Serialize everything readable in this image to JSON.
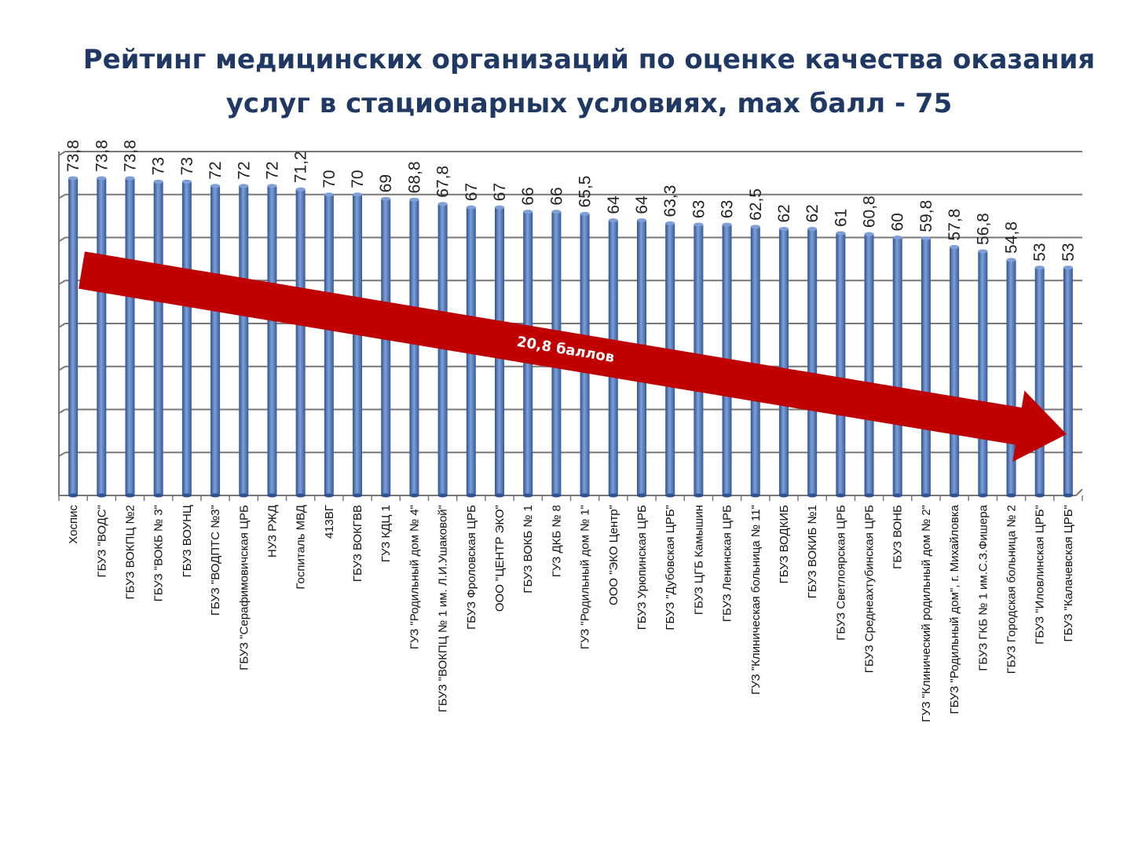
{
  "title": {
    "line1": "Рейтинг медицинских организаций по оценке качества оказания",
    "line2": "услуг в стационарных условиях, max балл - 75"
  },
  "annotation": {
    "arrow_label": "20,8 баллов"
  },
  "colors": {
    "bar": "#4470b5",
    "bar_dark": "#2e5293",
    "bar_light": "#7f9fd6",
    "arrow": "#c00000",
    "title": "#1f3864"
  },
  "chart_data": {
    "type": "bar",
    "title": "Рейтинг медицинских организаций по оценке качества оказания услуг в стационарных условиях, max балл - 75",
    "ylim": [
      0,
      80
    ],
    "grid": true,
    "categories": [
      "Хоспис",
      "ГБУЗ \"ВОДС\"",
      "ГБУЗ ВОКПЦ №2",
      "ГБУЗ \"ВОКБ № 3\"",
      "ГБУЗ ВОУНЦ",
      "ГБУЗ \"ВОДПТС №3\"",
      "ГБУЗ \"Серафимовичская ЦРБ",
      "НУЗ РЖД",
      "Госпиталь МВД",
      "413ВГ",
      "ГБУЗ ВОКГВВ",
      "ГУЗ КДЦ 1",
      "ГУЗ \"Родильный дом № 4\"",
      "ГБУЗ \"ВОКПЦ № 1 им. Л.И.Ушаковой\"",
      "ГБУЗ Фроловская ЦРБ",
      "ООО \"ЦЕНТР ЭКО\"",
      "ГБУЗ ВОКБ № 1",
      "ГУЗ ДКБ № 8",
      "ГУЗ \"Родильный дом № 1\"",
      "ООО \"ЭКО Центр\"",
      "ГБУЗ Урюпинская ЦРБ",
      "ГБУЗ \"Дубовская ЦРБ\"",
      "ГБУЗ ЦГБ Камышин",
      "ГБУЗ Ленинская ЦРБ",
      "ГУЗ \"Клиническая больница № 11\"",
      "ГБУЗ ВОДКИБ",
      "ГБУЗ ВОКИБ №1",
      "ГБУЗ Светлоярская ЦРБ",
      "ГБУЗ Среднеахтубинская ЦРБ",
      "ГБУЗ ВОНБ",
      "ГУЗ \"Клинический родильный дом № 2\"",
      "ГБУЗ \"Родильный дом\", г. Михайловка",
      "ГБУЗ ГКБ № 1 им.С.З.Фишера",
      "ГБУЗ Городская больница № 2",
      "ГБУЗ \"Иловлинская ЦРБ\"",
      "ГБУЗ \"Калачевская ЦРБ\""
    ],
    "values": [
      73.8,
      73.8,
      73.8,
      73,
      73,
      72,
      72,
      72,
      71.2,
      70,
      70,
      69,
      68.8,
      67.8,
      67,
      67,
      66,
      66,
      65.5,
      64,
      64,
      63.3,
      63,
      63,
      62.5,
      62,
      62,
      61,
      60.8,
      60,
      59.8,
      57.8,
      56.8,
      54.8,
      53,
      53
    ],
    "value_labels": [
      "73,8",
      "73,8",
      "73,8",
      "73",
      "73",
      "72",
      "72",
      "72",
      "71,2",
      "70",
      "70",
      "69",
      "68,8",
      "67,8",
      "67",
      "67",
      "66",
      "66",
      "65,5",
      "64",
      "64",
      "63,3",
      "63",
      "63",
      "62,5",
      "62",
      "62",
      "61",
      "60,8",
      "60",
      "59,8",
      "57,8",
      "56,8",
      "54,8",
      "53",
      "53"
    ]
  }
}
